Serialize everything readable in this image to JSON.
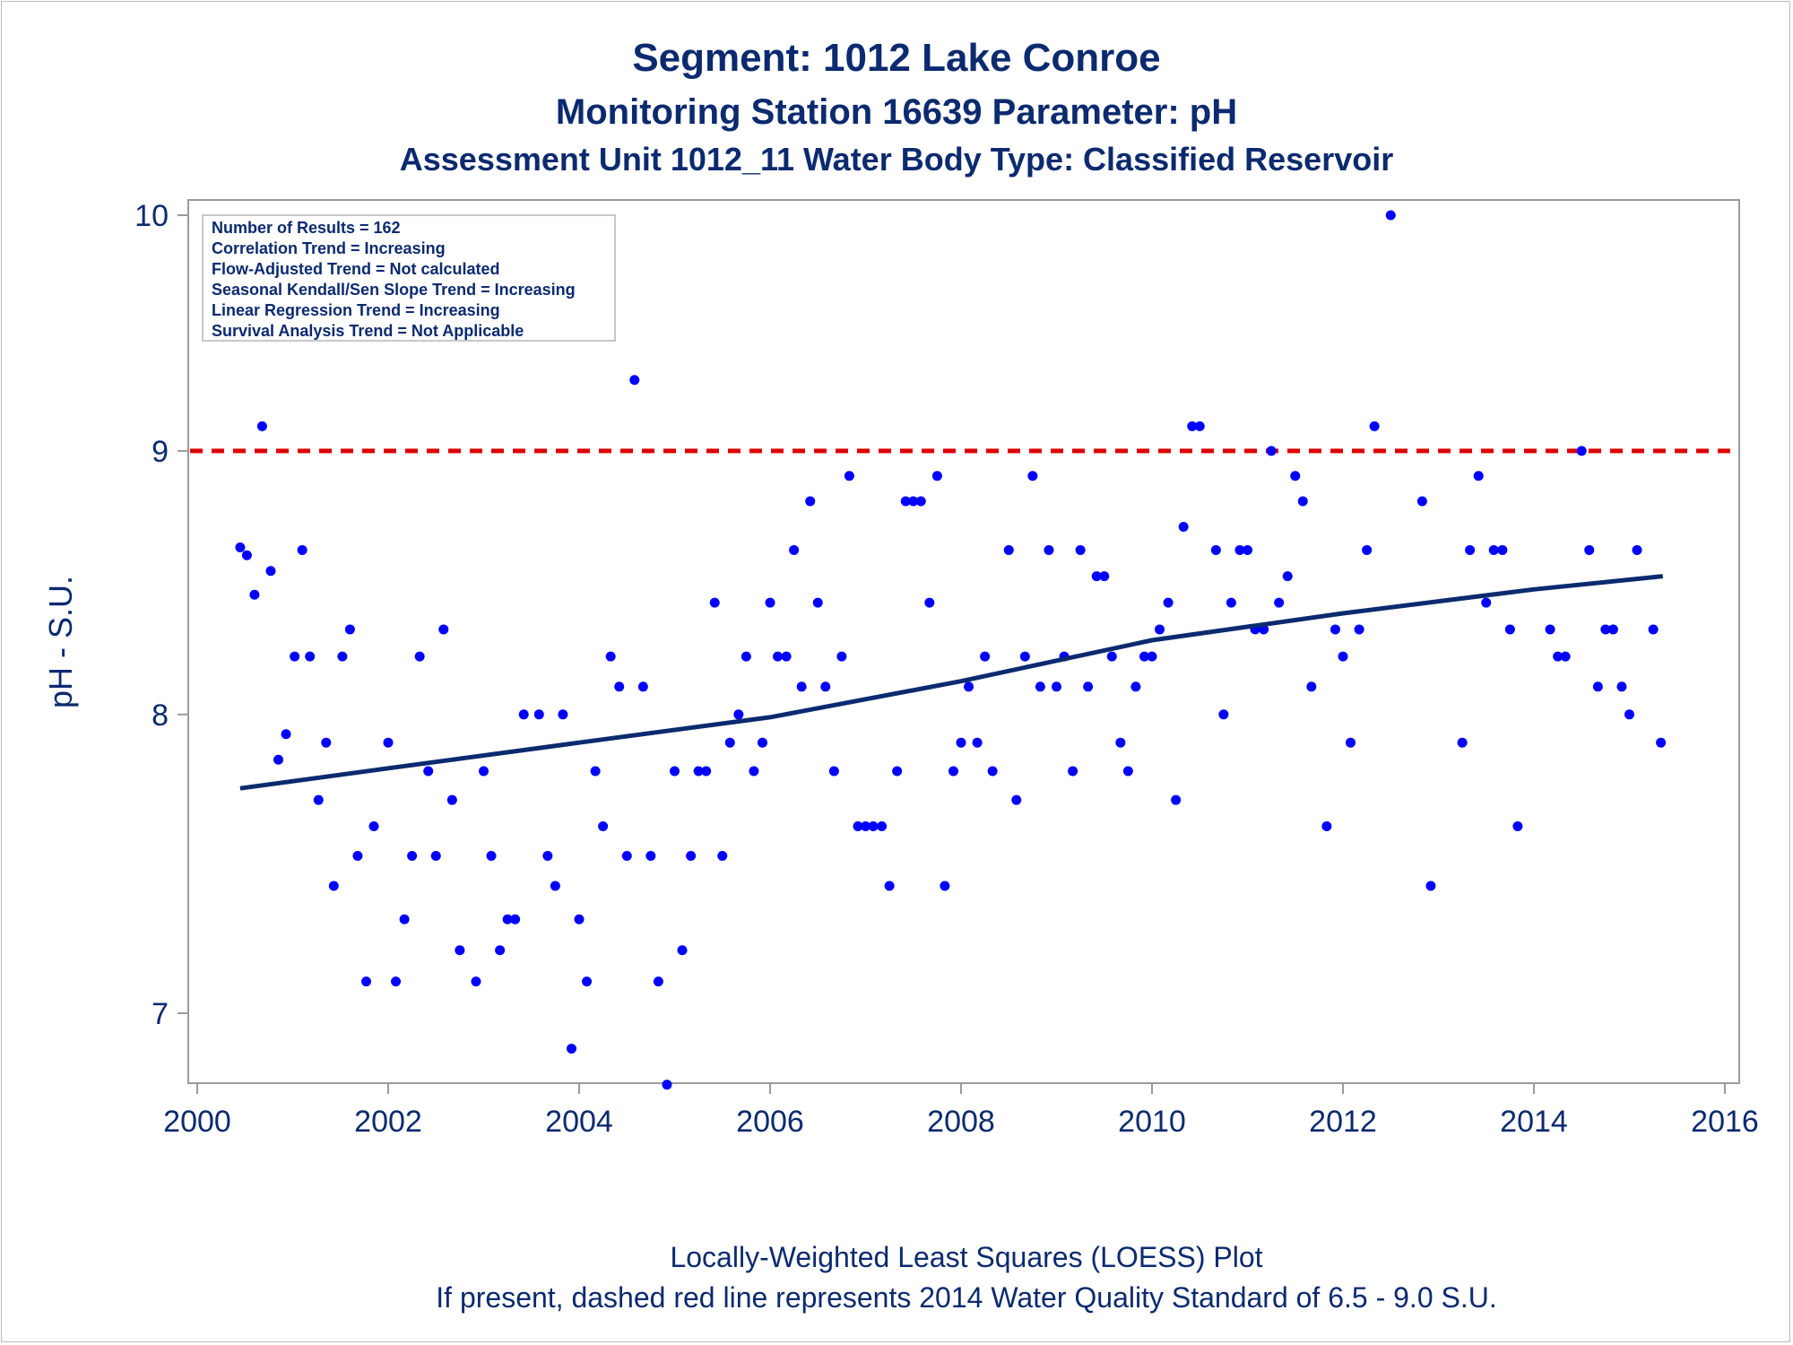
{
  "titles": {
    "line1": "Segment: 1012  Lake Conroe",
    "line2": "Monitoring Station 16639 Parameter: pH",
    "line3": "Assessment Unit 1012_11   Water Body Type: Classified Reservoir"
  },
  "inset": {
    "lines": [
      "Number of Results = 162",
      "Correlation Trend = Increasing",
      "Flow-Adjusted Trend = Not calculated",
      "Seasonal Kendall/Sen Slope Trend = Increasing",
      "Linear Regression Trend = Increasing",
      "Survival Analysis Trend = Not Applicable"
    ]
  },
  "footnotes": {
    "line1": "Locally-Weighted Least Squares (LOESS) Plot",
    "line2": "If present, dashed red line represents 2014 Water Quality Standard of 6.5 - 9.0 S.U."
  },
  "colors": {
    "points": "#0000ff",
    "trend": "#0b2a6f",
    "standard": "#dd0000",
    "text": "#0b2a6f",
    "axis": "#9a9a9a"
  },
  "chart_data": {
    "type": "scatter",
    "ylabel": "pH - S.U.",
    "xlabel": "",
    "xlim": [
      2000,
      2016.1
    ],
    "ylim": [
      6.8,
      10.04
    ],
    "y_scale": "log",
    "x_ticks": [
      "2000",
      "2002",
      "2004",
      "2006",
      "2008",
      "2010",
      "2012",
      "2014",
      "2016"
    ],
    "y_ticks": [
      "7",
      "8",
      "9",
      "10"
    ],
    "reference_line": {
      "y": 9.0,
      "style": "dashed"
    },
    "trend": {
      "name": "LOESS",
      "x": [
        2000.45,
        2002,
        2004,
        2006,
        2008,
        2010,
        2012,
        2014,
        2015.35
      ],
      "y": [
        7.74,
        7.81,
        7.9,
        7.99,
        8.12,
        8.27,
        8.37,
        8.46,
        8.51
      ]
    },
    "points": [
      [
        2000.45,
        8.62
      ],
      [
        2000.52,
        8.59
      ],
      [
        2000.6,
        8.44
      ],
      [
        2000.68,
        9.1
      ],
      [
        2000.77,
        8.53
      ],
      [
        2000.85,
        7.84
      ],
      [
        2000.93,
        7.93
      ],
      [
        2001.02,
        8.21
      ],
      [
        2001.1,
        8.61
      ],
      [
        2001.18,
        8.21
      ],
      [
        2001.27,
        7.7
      ],
      [
        2001.35,
        7.9
      ],
      [
        2001.43,
        7.41
      ],
      [
        2001.52,
        8.21
      ],
      [
        2001.6,
        8.31
      ],
      [
        2001.68,
        7.51
      ],
      [
        2001.77,
        7.1
      ],
      [
        2001.85,
        7.61
      ],
      [
        2002.0,
        7.9
      ],
      [
        2002.08,
        7.1
      ],
      [
        2002.17,
        7.3
      ],
      [
        2002.25,
        7.51
      ],
      [
        2002.33,
        8.21
      ],
      [
        2002.42,
        7.8
      ],
      [
        2002.5,
        7.51
      ],
      [
        2002.58,
        8.31
      ],
      [
        2002.67,
        7.7
      ],
      [
        2002.75,
        7.2
      ],
      [
        2002.92,
        7.1
      ],
      [
        2003.0,
        7.8
      ],
      [
        2003.08,
        7.51
      ],
      [
        2003.17,
        7.2
      ],
      [
        2003.25,
        7.3
      ],
      [
        2003.33,
        7.3
      ],
      [
        2003.42,
        8.0
      ],
      [
        2003.58,
        8.0
      ],
      [
        2003.67,
        7.51
      ],
      [
        2003.75,
        7.41
      ],
      [
        2003.83,
        8.0
      ],
      [
        2003.92,
        6.89
      ],
      [
        2004.0,
        7.3
      ],
      [
        2004.08,
        7.1
      ],
      [
        2004.17,
        7.8
      ],
      [
        2004.25,
        7.61
      ],
      [
        2004.33,
        8.21
      ],
      [
        2004.42,
        8.1
      ],
      [
        2004.5,
        7.51
      ],
      [
        2004.58,
        9.29
      ],
      [
        2004.67,
        8.1
      ],
      [
        2004.75,
        7.51
      ],
      [
        2004.83,
        7.1
      ],
      [
        2004.92,
        6.78
      ],
      [
        2005.0,
        7.8
      ],
      [
        2005.08,
        7.2
      ],
      [
        2005.17,
        7.51
      ],
      [
        2005.25,
        7.8
      ],
      [
        2005.33,
        7.8
      ],
      [
        2005.42,
        8.41
      ],
      [
        2005.5,
        7.51
      ],
      [
        2005.58,
        7.9
      ],
      [
        2005.67,
        8.0
      ],
      [
        2005.75,
        8.21
      ],
      [
        2005.83,
        7.8
      ],
      [
        2005.92,
        7.9
      ],
      [
        2006.0,
        8.41
      ],
      [
        2006.08,
        8.21
      ],
      [
        2006.17,
        8.21
      ],
      [
        2006.25,
        8.61
      ],
      [
        2006.33,
        8.1
      ],
      [
        2006.42,
        8.8
      ],
      [
        2006.5,
        8.41
      ],
      [
        2006.58,
        8.1
      ],
      [
        2006.67,
        7.8
      ],
      [
        2006.75,
        8.21
      ],
      [
        2006.83,
        8.9
      ],
      [
        2006.92,
        7.61
      ],
      [
        2007.0,
        7.61
      ],
      [
        2007.08,
        7.61
      ],
      [
        2007.17,
        7.61
      ],
      [
        2007.25,
        7.41
      ],
      [
        2007.33,
        7.8
      ],
      [
        2007.42,
        8.8
      ],
      [
        2007.5,
        8.8
      ],
      [
        2007.58,
        8.8
      ],
      [
        2007.67,
        8.41
      ],
      [
        2007.75,
        8.9
      ],
      [
        2007.83,
        7.41
      ],
      [
        2007.92,
        7.8
      ],
      [
        2008.0,
        7.9
      ],
      [
        2008.08,
        8.1
      ],
      [
        2008.17,
        7.9
      ],
      [
        2008.25,
        8.21
      ],
      [
        2008.33,
        7.8
      ],
      [
        2008.5,
        8.61
      ],
      [
        2008.58,
        7.7
      ],
      [
        2008.67,
        8.21
      ],
      [
        2008.75,
        8.9
      ],
      [
        2008.83,
        8.1
      ],
      [
        2008.92,
        8.61
      ],
      [
        2009.0,
        8.1
      ],
      [
        2009.08,
        8.21
      ],
      [
        2009.17,
        7.8
      ],
      [
        2009.25,
        8.61
      ],
      [
        2009.33,
        8.1
      ],
      [
        2009.42,
        8.51
      ],
      [
        2009.5,
        8.51
      ],
      [
        2009.58,
        8.21
      ],
      [
        2009.67,
        7.9
      ],
      [
        2009.75,
        7.8
      ],
      [
        2009.83,
        8.1
      ],
      [
        2009.92,
        8.21
      ],
      [
        2010.0,
        8.21
      ],
      [
        2010.08,
        8.31
      ],
      [
        2010.17,
        8.41
      ],
      [
        2010.25,
        7.7
      ],
      [
        2010.33,
        8.7
      ],
      [
        2010.42,
        9.1
      ],
      [
        2010.5,
        9.1
      ],
      [
        2010.67,
        8.61
      ],
      [
        2010.75,
        8.0
      ],
      [
        2010.83,
        8.41
      ],
      [
        2010.92,
        8.61
      ],
      [
        2011.0,
        8.61
      ],
      [
        2011.08,
        8.31
      ],
      [
        2011.17,
        8.31
      ],
      [
        2011.25,
        9.0
      ],
      [
        2011.33,
        8.41
      ],
      [
        2011.42,
        8.51
      ],
      [
        2011.5,
        8.9
      ],
      [
        2011.58,
        8.8
      ],
      [
        2011.67,
        8.1
      ],
      [
        2011.83,
        7.61
      ],
      [
        2011.92,
        8.31
      ],
      [
        2012.0,
        8.21
      ],
      [
        2012.08,
        7.9
      ],
      [
        2012.17,
        8.31
      ],
      [
        2012.25,
        8.61
      ],
      [
        2012.33,
        9.1
      ],
      [
        2012.5,
        10.0
      ],
      [
        2012.83,
        8.8
      ],
      [
        2012.92,
        7.41
      ],
      [
        2013.25,
        7.9
      ],
      [
        2013.33,
        8.61
      ],
      [
        2013.42,
        8.9
      ],
      [
        2013.5,
        8.41
      ],
      [
        2013.58,
        8.61
      ],
      [
        2013.67,
        8.61
      ],
      [
        2013.75,
        8.31
      ],
      [
        2013.83,
        7.61
      ],
      [
        2014.17,
        8.31
      ],
      [
        2014.25,
        8.21
      ],
      [
        2014.33,
        8.21
      ],
      [
        2014.5,
        9.0
      ],
      [
        2014.58,
        8.61
      ],
      [
        2014.67,
        8.1
      ],
      [
        2014.75,
        8.31
      ],
      [
        2014.83,
        8.31
      ],
      [
        2014.92,
        8.1
      ],
      [
        2015.0,
        8.0
      ],
      [
        2015.08,
        8.61
      ],
      [
        2015.25,
        8.31
      ],
      [
        2015.33,
        7.9
      ]
    ]
  }
}
